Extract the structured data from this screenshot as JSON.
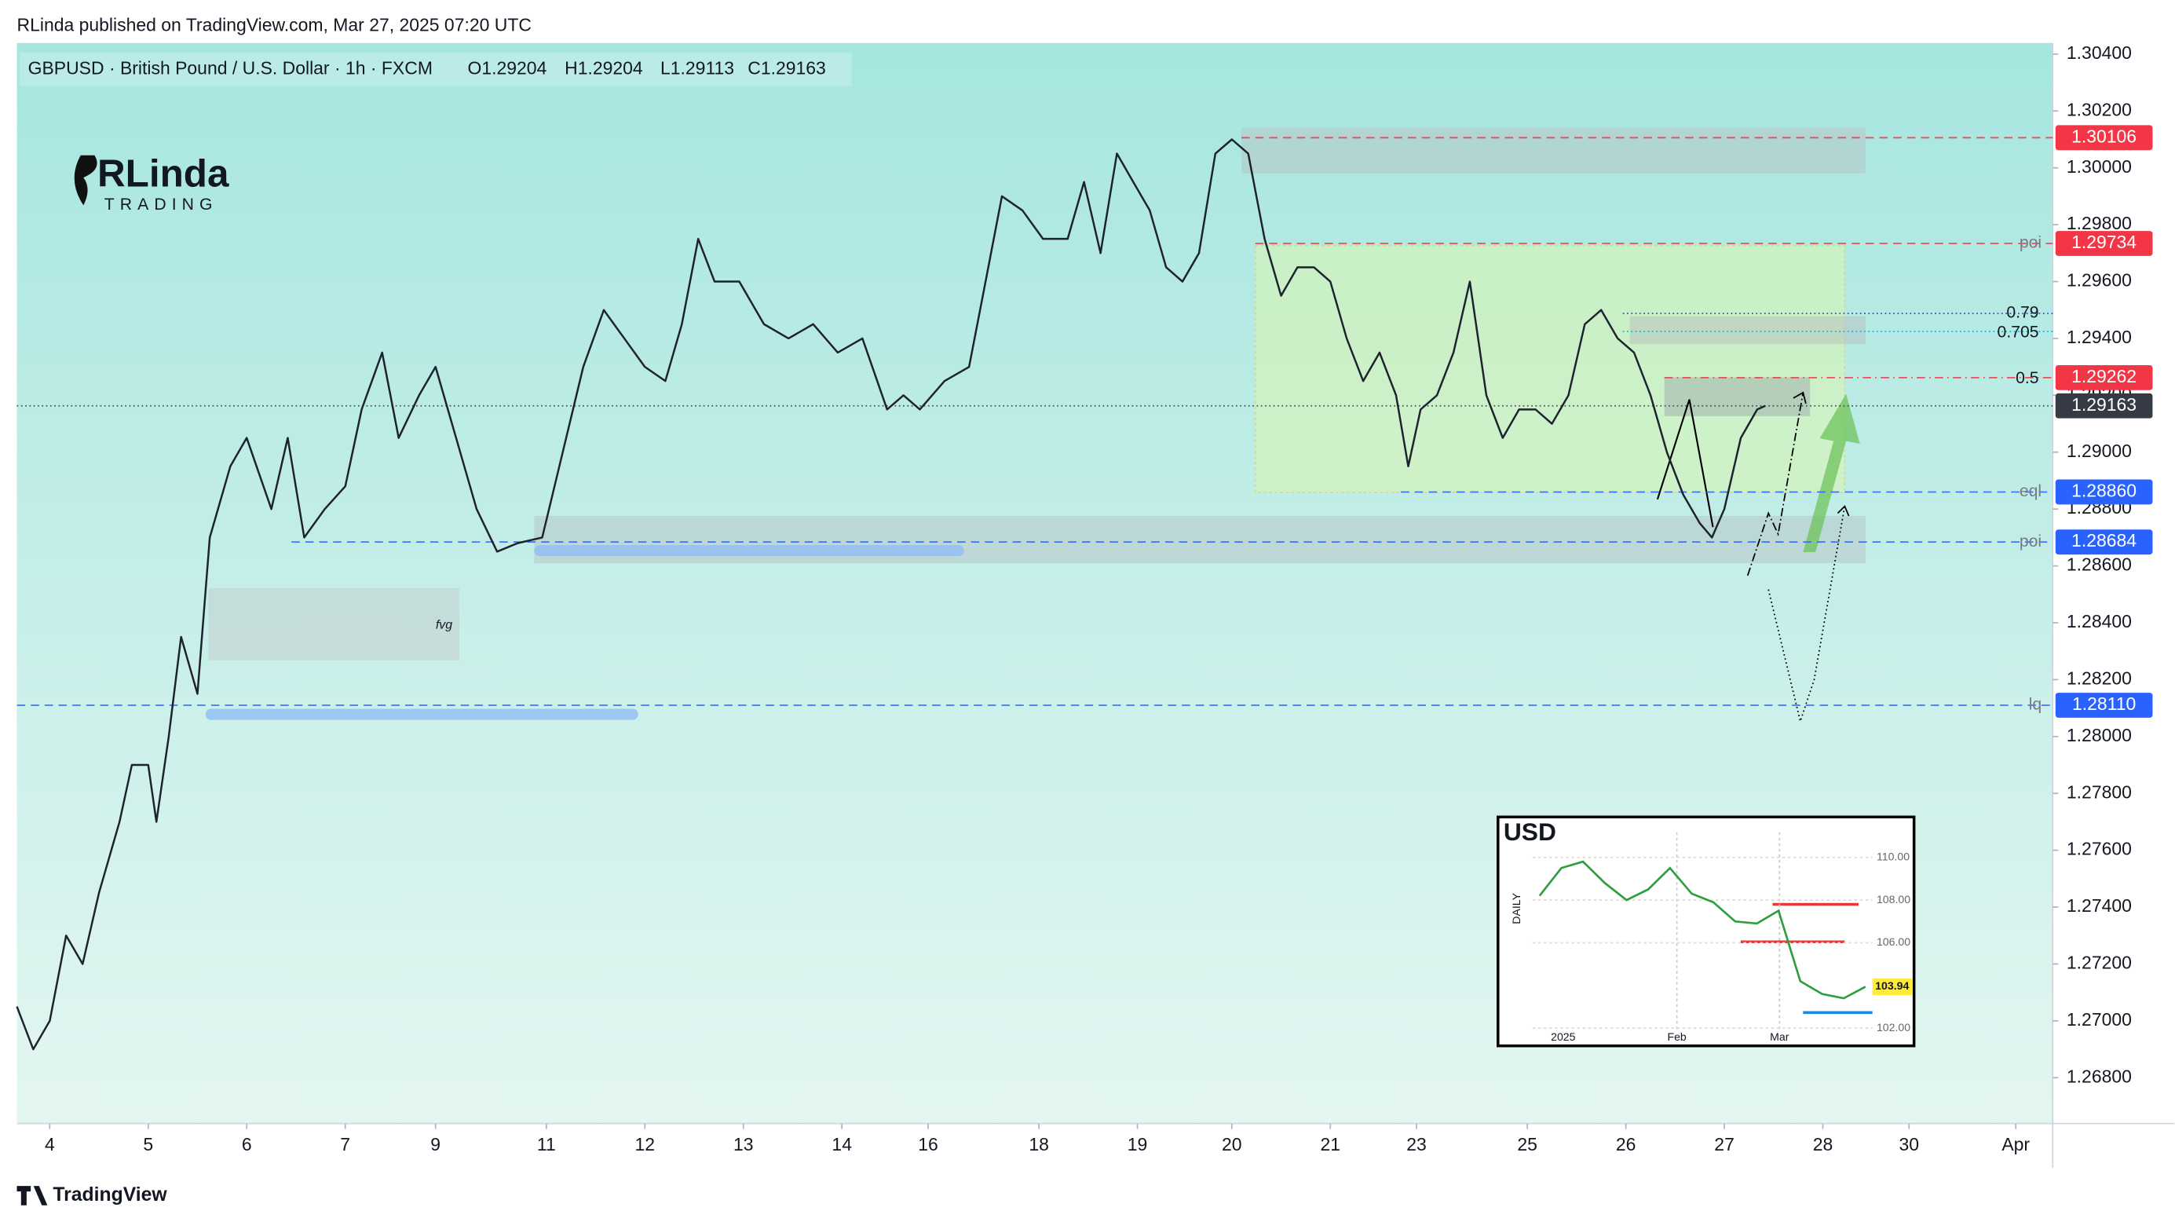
{
  "header": {
    "publisher": "RLinda published on TradingView.com, Mar 27, 2025 07:20 UTC"
  },
  "logo": {
    "name": "RLinda",
    "tagline": "TRADING"
  },
  "chart_data": {
    "type": "line",
    "title": "GBPUSD · British Pound / U.S. Dollar · 1h · FXCM",
    "ohlc": [
      "O1.29204",
      "H1.29204",
      "L1.29113",
      "C1.29163"
    ],
    "color": "#1e222d",
    "x": [
      0,
      4,
      8,
      12,
      16,
      20,
      25,
      28,
      32,
      34,
      37,
      40,
      44,
      47,
      52,
      56,
      62,
      66,
      70,
      75,
      80,
      84,
      89,
      93,
      98,
      102,
      107,
      112,
      117,
      122,
      128,
      133,
      138,
      143,
      148,
      153,
      158,
      162,
      166,
      170,
      176,
      182,
      188,
      194,
      200,
      206,
      212,
      216,
      220,
      226,
      232,
      236,
      240,
      245,
      250,
      256,
      260,
      264,
      268,
      272,
      276,
      280,
      284,
      288,
      292,
      296,
      300,
      304,
      308,
      312,
      316,
      320,
      324,
      328,
      332,
      336,
      339,
      342,
      346,
      350,
      354,
      358,
      362,
      366,
      370,
      374,
      378,
      382,
      386,
      390,
      394,
      398,
      402,
      406,
      410,
      413,
      416,
      420,
      424,
      426
    ],
    "values": [
      1.2705,
      1.269,
      1.27,
      1.273,
      1.272,
      1.2745,
      1.277,
      1.279,
      1.279,
      1.277,
      1.28,
      1.2835,
      1.2815,
      1.287,
      1.2895,
      1.2905,
      1.288,
      1.2905,
      1.287,
      1.288,
      1.2888,
      1.2915,
      1.2935,
      1.2905,
      1.292,
      1.293,
      1.2905,
      1.288,
      1.2865,
      1.2868,
      1.287,
      1.29,
      1.293,
      1.295,
      1.294,
      1.293,
      1.2925,
      1.2945,
      1.2975,
      1.296,
      1.296,
      1.2945,
      1.294,
      1.2945,
      1.2935,
      1.294,
      1.2915,
      1.292,
      1.2915,
      1.2925,
      1.293,
      1.296,
      1.299,
      1.2985,
      1.2975,
      1.2975,
      1.2995,
      1.297,
      1.3005,
      1.2995,
      1.2985,
      1.2965,
      1.296,
      1.297,
      1.3005,
      1.301,
      1.3005,
      1.2975,
      1.2955,
      1.2965,
      1.2965,
      1.296,
      1.294,
      1.2925,
      1.2935,
      1.292,
      1.2895,
      1.2915,
      1.292,
      1.2935,
      1.296,
      1.292,
      1.2905,
      1.2915,
      1.2915,
      1.291,
      1.292,
      1.2945,
      1.295,
      1.294,
      1.2935,
      1.292,
      1.29,
      1.2885,
      1.2875,
      1.287,
      1.288,
      1.2905,
      1.2915,
      1.29163
    ],
    "xlim": [
      0,
      496
    ],
    "xticks": [
      {
        "value": 8,
        "label": "4"
      },
      {
        "value": 32,
        "label": "5"
      },
      {
        "value": 56,
        "label": "6"
      },
      {
        "value": 80,
        "label": "7"
      },
      {
        "value": 102,
        "label": "9"
      },
      {
        "value": 129,
        "label": "11"
      },
      {
        "value": 153,
        "label": "12"
      },
      {
        "value": 177,
        "label": "13"
      },
      {
        "value": 201,
        "label": "14"
      },
      {
        "value": 222,
        "label": "16"
      },
      {
        "value": 249,
        "label": "18"
      },
      {
        "value": 273,
        "label": "19"
      },
      {
        "value": 296,
        "label": "20"
      },
      {
        "value": 320,
        "label": "21"
      },
      {
        "value": 341,
        "label": "23"
      },
      {
        "value": 368,
        "label": "25"
      },
      {
        "value": 392,
        "label": "26"
      },
      {
        "value": 416,
        "label": "27"
      },
      {
        "value": 440,
        "label": "28"
      },
      {
        "value": 461,
        "label": "30"
      },
      {
        "value": 487,
        "label": "Apr"
      }
    ],
    "ylim": [
      1.26639,
      1.30439
    ],
    "yticks": [
      {
        "value": 1.304,
        "label": "1.30400"
      },
      {
        "value": 1.302,
        "label": "1.30200"
      },
      {
        "value": 1.3,
        "label": "1.30000"
      },
      {
        "value": 1.298,
        "label": "1.29800"
      },
      {
        "value": 1.296,
        "label": "1.29600"
      },
      {
        "value": 1.294,
        "label": "1.29400"
      },
      {
        "value": 1.292,
        "label": "1.29200"
      },
      {
        "value": 1.29,
        "label": "1.29000"
      },
      {
        "value": 1.288,
        "label": "1.28800"
      },
      {
        "value": 1.286,
        "label": "1.28600"
      },
      {
        "value": 1.284,
        "label": "1.28400"
      },
      {
        "value": 1.282,
        "label": "1.28200"
      },
      {
        "value": 1.28,
        "label": "1.28000"
      },
      {
        "value": 1.278,
        "label": "1.27800"
      },
      {
        "value": 1.276,
        "label": "1.27600"
      },
      {
        "value": 1.274,
        "label": "1.27400"
      },
      {
        "value": 1.272,
        "label": "1.27200"
      },
      {
        "value": 1.27,
        "label": "1.27000"
      },
      {
        "value": 1.268,
        "label": "1.26800"
      }
    ],
    "levels": [
      {
        "value": 1.30106,
        "label": "1.30106",
        "color": "#f23645"
      },
      {
        "value": 1.29734,
        "label": "1.29734",
        "color": "#f23645",
        "tag": "poi"
      },
      {
        "value": 1.29262,
        "label": "1.29262",
        "color": "#f23645"
      },
      {
        "value": 1.29163,
        "label": "1.29163",
        "color": "#363a45"
      },
      {
        "value": 1.2886,
        "label": "1.28860",
        "color": "#2962ff",
        "tag": "eql"
      },
      {
        "value": 1.28684,
        "label": "1.28684",
        "color": "#2962ff",
        "tag": "poi"
      },
      {
        "value": 1.2811,
        "label": "1.28110",
        "color": "#2962ff",
        "tag": "lq"
      }
    ],
    "fib": [
      "0.79",
      "0.705",
      "0.5"
    ],
    "fvg": "fvg"
  },
  "inset": {
    "title": "USD",
    "axis_label": "DAILY",
    "values": [
      108.2,
      109.5,
      109.8,
      108.8,
      108,
      108.5,
      109.5,
      108.3,
      107.9,
      107,
      106.9,
      107.5,
      104.2,
      103.6,
      103.4,
      103.94
    ],
    "ylim": [
      101.3,
      111.7
    ],
    "yticks": [
      {
        "value": 110,
        "label": "110.00"
      },
      {
        "value": 108,
        "label": "108.00"
      },
      {
        "value": 106,
        "label": "106.00"
      },
      {
        "value": 102,
        "label": "102.00"
      }
    ],
    "last_value": 103.94,
    "xlabels": [
      "2025",
      "Feb",
      "Mar"
    ]
  },
  "footer": {
    "brand": "TradingView"
  }
}
